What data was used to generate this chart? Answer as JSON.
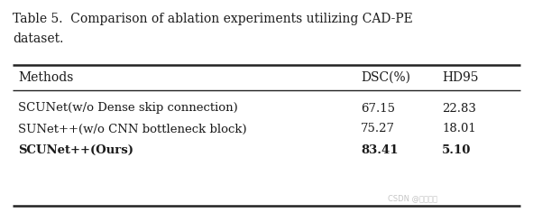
{
  "title_line1": "Table 5.  Comparison of ablation experiments utilizing CAD-PE",
  "title_line2": "dataset.",
  "col_headers": [
    "Methods",
    "DSC(%)",
    "HD95"
  ],
  "rows": [
    {
      "method": "SCUNet(w/o Dense skip connection)",
      "dsc": "67.15",
      "hd95": "22.83",
      "bold": false
    },
    {
      "method": "SUNet++(w/o CNN bottleneck block)",
      "dsc": "75.27",
      "hd95": "18.01",
      "bold": false
    },
    {
      "method": "SCUNet++(Ours)",
      "dsc": "83.41",
      "hd95": "5.10",
      "bold": true
    }
  ],
  "bg_color": "#ffffff",
  "text_color": "#1a1a1a",
  "watermark": "CSDN @是馒头阿",
  "watermark_color": "#bbbbbb",
  "fig_width": 5.91,
  "fig_height": 2.36,
  "dpi": 100
}
